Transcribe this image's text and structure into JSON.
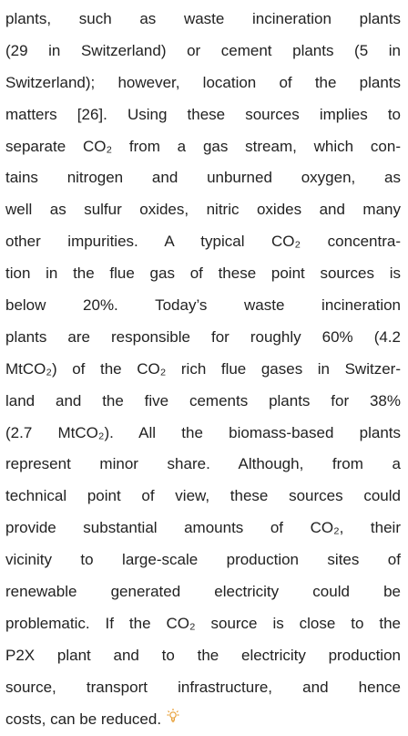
{
  "paragraph": {
    "lines": [
      "plants, such as waste incineration plants",
      "(29 in Switzerland) or cement plants (5 in",
      "Switzerland); however, location of the plants",
      "matters [26]. Using these sources implies to",
      "separate CO₂ from a gas stream, which con-",
      "tains nitrogen and unburned oxygen, as",
      "well as sulfur oxides, nitric oxides and many",
      "other impurities. A typical CO₂ concentra-",
      "tion in the flue gas of these point sources is",
      "below 20%. Today’s waste incineration",
      "plants are responsible for roughly 60% (4.2",
      "MtCO₂) of the CO₂ rich flue gases in Switzer-",
      "land and the five cements plants for 38%",
      "(2.7 MtCO₂). All the biomass-based plants",
      "represent minor share. Although, from a",
      "technical point of view, these sources could",
      "provide substantial amounts of CO₂, their",
      "vicinity to large-scale production sites of",
      "renewable generated electricity could be",
      "problematic. If the CO₂ source is close to the",
      "P2X plant and to the electricity production",
      "source, transport infrastructure, and hence",
      "costs, can be reduced."
    ]
  }
}
